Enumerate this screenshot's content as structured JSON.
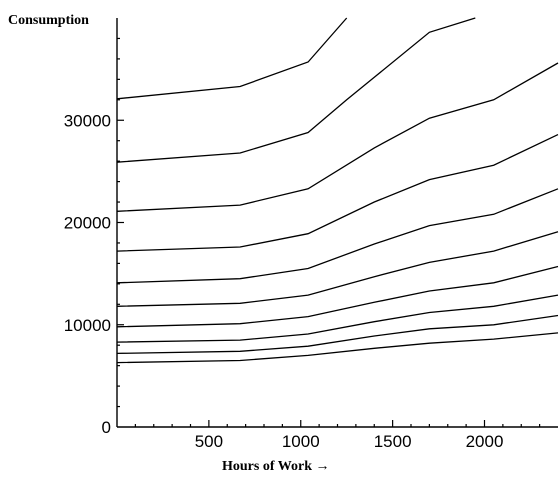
{
  "chart_data": {
    "type": "line",
    "title": "",
    "xlabel": "Hours of Work →",
    "ylabel": "Consumption",
    "xlim": [
      0,
      2400
    ],
    "ylim": [
      0,
      40000
    ],
    "x_ticks": [
      500,
      1000,
      1500,
      2000
    ],
    "y_ticks": [
      0,
      10000,
      20000,
      30000
    ],
    "x_tick_labels": [
      "500",
      "1000",
      "1500",
      "2000"
    ],
    "y_tick_labels": [
      "0",
      "10000",
      "20000",
      "30000"
    ],
    "grid": false,
    "legend": "none",
    "line_color": "#000000",
    "series": [
      {
        "x": [
          0,
          670,
          1040,
          1400,
          1700,
          2050,
          2400
        ],
        "y": [
          6300,
          6500,
          7000,
          7700,
          8200,
          8600,
          9200
        ]
      },
      {
        "x": [
          0,
          670,
          1040,
          1400,
          1700,
          2050,
          2400
        ],
        "y": [
          7200,
          7400,
          7900,
          8900,
          9600,
          10000,
          10900
        ]
      },
      {
        "x": [
          0,
          670,
          1040,
          1400,
          1700,
          2050,
          2400
        ],
        "y": [
          8300,
          8500,
          9100,
          10300,
          11200,
          11800,
          12900
        ]
      },
      {
        "x": [
          0,
          670,
          1040,
          1400,
          1700,
          2050,
          2400
        ],
        "y": [
          9800,
          10100,
          10800,
          12200,
          13300,
          14100,
          15700
        ]
      },
      {
        "x": [
          0,
          670,
          1040,
          1400,
          1700,
          2050,
          2400
        ],
        "y": [
          11800,
          12100,
          12900,
          14700,
          16100,
          17200,
          19100
        ]
      },
      {
        "x": [
          0,
          670,
          1040,
          1400,
          1700,
          2050,
          2400
        ],
        "y": [
          14100,
          14500,
          15500,
          17900,
          19700,
          20800,
          23300
        ]
      },
      {
        "x": [
          0,
          670,
          1040,
          1400,
          1700,
          2050,
          2400
        ],
        "y": [
          17200,
          17600,
          18900,
          22000,
          24200,
          25600,
          28600
        ]
      },
      {
        "x": [
          0,
          670,
          1040,
          1400,
          1700,
          2050,
          2400
        ],
        "y": [
          21100,
          21700,
          23300,
          27300,
          30200,
          32000,
          35600
        ]
      },
      {
        "x": [
          0,
          670,
          1040,
          1250,
          1400,
          1700,
          1950
        ],
        "y": [
          25900,
          26800,
          28800,
          32000,
          34200,
          38600,
          40000
        ]
      },
      {
        "x": [
          0,
          670,
          1040,
          1250
        ],
        "y": [
          32100,
          33300,
          35700,
          40000
        ]
      }
    ]
  }
}
